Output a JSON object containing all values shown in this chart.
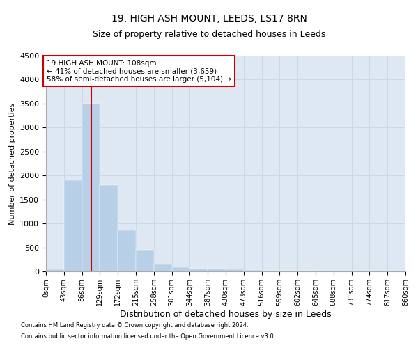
{
  "title1": "19, HIGH ASH MOUNT, LEEDS, LS17 8RN",
  "title2": "Size of property relative to detached houses in Leeds",
  "xlabel": "Distribution of detached houses by size in Leeds",
  "ylabel": "Number of detached properties",
  "bar_edges": [
    0,
    43,
    86,
    129,
    172,
    215,
    258,
    301,
    344,
    387,
    430,
    473,
    516,
    559,
    602,
    645,
    688,
    731,
    774,
    817,
    860
  ],
  "bar_values": [
    50,
    1900,
    3500,
    1800,
    850,
    450,
    150,
    80,
    60,
    55,
    40,
    30,
    20,
    10,
    8,
    5,
    3,
    2,
    1,
    1
  ],
  "bar_color": "#b8cfe8",
  "grid_color": "#c8d8ea",
  "bg_color": "#dde8f2",
  "vline_x": 108,
  "vline_color": "#cc0000",
  "annotation_text": "19 HIGH ASH MOUNT: 108sqm\n← 41% of detached houses are smaller (3,659)\n58% of semi-detached houses are larger (5,104) →",
  "annotation_box_color": "#cc0000",
  "ylim": [
    0,
    4500
  ],
  "yticks": [
    0,
    500,
    1000,
    1500,
    2000,
    2500,
    3000,
    3500,
    4000,
    4500
  ],
  "footer1": "Contains HM Land Registry data © Crown copyright and database right 2024.",
  "footer2": "Contains public sector information licensed under the Open Government Licence v3.0.",
  "title1_fontsize": 10,
  "title2_fontsize": 9,
  "ylabel_fontsize": 8,
  "xlabel_fontsize": 9,
  "annotation_fontsize": 7.5,
  "tick_fontsize": 7,
  "footer_fontsize": 6
}
